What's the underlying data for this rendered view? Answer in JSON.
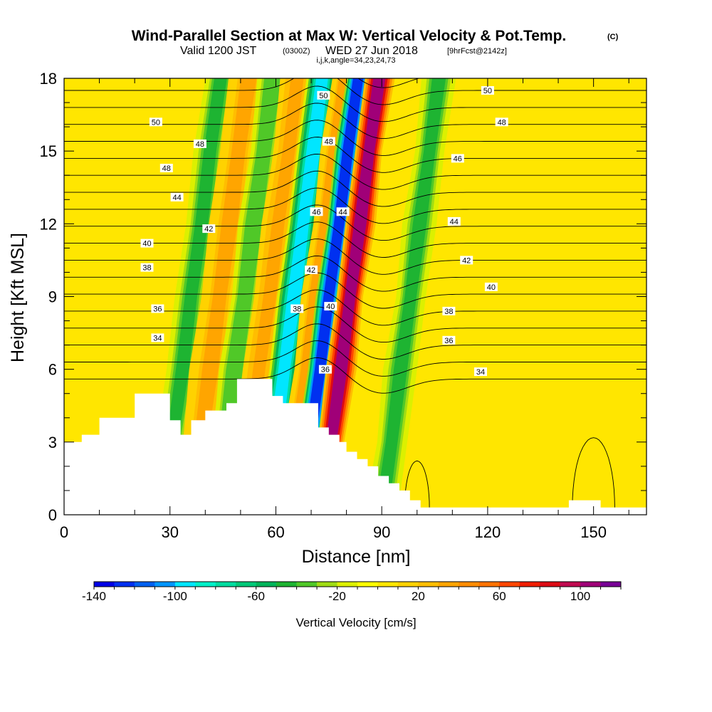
{
  "title": {
    "main": "Wind-Parallel Section at Max W: Vertical Velocity & Pot.Temp.",
    "mark": "(C)",
    "valid_prefix": "Valid 1200 JST",
    "valid_z": "(0300Z)",
    "valid_date": "WED 27 Jun 2018",
    "valid_fcst": "[9hrFcst@2142z]",
    "indices": "i,j,k,angle=34,23,24,73"
  },
  "chart_data": {
    "type": "heatmap",
    "xlabel": "Distance [nm]",
    "ylabel": "Height [Kft MSL]",
    "xlim": [
      0,
      165
    ],
    "ylim": [
      0,
      18
    ],
    "x_ticks": [
      0,
      30,
      60,
      90,
      120,
      150
    ],
    "y_ticks": [
      0,
      3,
      6,
      9,
      12,
      15,
      18
    ],
    "colorbar": {
      "label": "Vertical Velocity [cm/s]",
      "min": -140,
      "max": 120,
      "step": 10,
      "tick_values": [
        -140,
        -100,
        -60,
        -20,
        20,
        60,
        100
      ],
      "tick_labels": [
        "-140",
        "-100",
        "-60",
        "-20",
        "20",
        "60",
        "100"
      ],
      "colors": [
        "#0000e6",
        "#0030f0",
        "#0060f0",
        "#0096ff",
        "#00e6ff",
        "#00f0c8",
        "#00dca0",
        "#00c878",
        "#00b45a",
        "#1eb432",
        "#50c828",
        "#a0dc14",
        "#dcf000",
        "#ffff00",
        "#ffe600",
        "#ffd200",
        "#ffbe00",
        "#ffa500",
        "#ff8c00",
        "#ff7300",
        "#ff4600",
        "#f01e00",
        "#dc0a14",
        "#c00a50",
        "#a00078",
        "#780096"
      ]
    },
    "vertical_velocity_bands": [
      {
        "x_base": 28,
        "value": -50,
        "width": 4
      },
      {
        "x_base": 36,
        "value": 30,
        "width": 5
      },
      {
        "x_base": 43,
        "value": -40,
        "width": 3.5
      },
      {
        "x_base": 50,
        "value": 35,
        "width": 4
      },
      {
        "x_base": 57,
        "value": -95,
        "width": 4
      },
      {
        "x_base": 63,
        "value": 30,
        "width": 3
      },
      {
        "x_base": 67,
        "value": -130,
        "width": 3
      },
      {
        "x_base": 73,
        "value": 100,
        "width": 3.5
      },
      {
        "x_base": 90,
        "value": -50,
        "width": 4
      }
    ],
    "terrain": [
      [
        0,
        3
      ],
      [
        5,
        3
      ],
      [
        5,
        3.3
      ],
      [
        10,
        3.3
      ],
      [
        10,
        4
      ],
      [
        20,
        4
      ],
      [
        20,
        5
      ],
      [
        30,
        5
      ],
      [
        30,
        3.9
      ],
      [
        33,
        3.9
      ],
      [
        33,
        3.3
      ],
      [
        36,
        3.3
      ],
      [
        36,
        3.9
      ],
      [
        40,
        3.9
      ],
      [
        40,
        4.3
      ],
      [
        46,
        4.3
      ],
      [
        46,
        4.6
      ],
      [
        49,
        4.6
      ],
      [
        49,
        5.6
      ],
      [
        59,
        5.6
      ],
      [
        59,
        4.9
      ],
      [
        62,
        4.9
      ],
      [
        62,
        4.6
      ],
      [
        72,
        4.6
      ],
      [
        72,
        3.6
      ],
      [
        75,
        3.6
      ],
      [
        75,
        3.3
      ],
      [
        78,
        3.3
      ],
      [
        78,
        3
      ],
      [
        80,
        3
      ],
      [
        80,
        2.6
      ],
      [
        83,
        2.6
      ],
      [
        83,
        2.3
      ],
      [
        86,
        2.3
      ],
      [
        86,
        2
      ],
      [
        89,
        2
      ],
      [
        89,
        1.6
      ],
      [
        92,
        1.6
      ],
      [
        92,
        1.3
      ],
      [
        95,
        1.3
      ],
      [
        95,
        1
      ],
      [
        98,
        1
      ],
      [
        98,
        0.6
      ],
      [
        101,
        0.6
      ],
      [
        101,
        0.3
      ],
      [
        143,
        0.3
      ],
      [
        143,
        0.6
      ],
      [
        152,
        0.6
      ],
      [
        152,
        0.3
      ],
      [
        165,
        0.3
      ],
      [
        165,
        0
      ]
    ],
    "theta_contour_values": [
      33,
      34,
      35,
      36,
      37,
      38,
      39,
      40,
      41,
      42,
      43,
      44,
      45,
      46,
      47,
      48,
      49,
      50,
      51
    ],
    "contour_labels": [
      {
        "text": "50",
        "x": 26.0,
        "y": 16.2
      },
      {
        "text": "48",
        "x": 38.5,
        "y": 15.3
      },
      {
        "text": "48",
        "x": 29.0,
        "y": 14.3
      },
      {
        "text": "44",
        "x": 32.0,
        "y": 13.1
      },
      {
        "text": "42",
        "x": 41.0,
        "y": 11.8
      },
      {
        "text": "40",
        "x": 23.5,
        "y": 11.2
      },
      {
        "text": "38",
        "x": 23.5,
        "y": 10.2
      },
      {
        "text": "36",
        "x": 26.5,
        "y": 8.5
      },
      {
        "text": "34",
        "x": 26.5,
        "y": 7.3
      },
      {
        "text": "50",
        "x": 73.5,
        "y": 17.3
      },
      {
        "text": "48",
        "x": 75.0,
        "y": 15.4
      },
      {
        "text": "46",
        "x": 71.5,
        "y": 12.5
      },
      {
        "text": "44",
        "x": 79.0,
        "y": 12.5
      },
      {
        "text": "42",
        "x": 70.0,
        "y": 10.1
      },
      {
        "text": "40",
        "x": 75.5,
        "y": 8.6
      },
      {
        "text": "38",
        "x": 66.0,
        "y": 8.5
      },
      {
        "text": "36",
        "x": 74.0,
        "y": 6.0
      },
      {
        "text": "50",
        "x": 120.0,
        "y": 17.5
      },
      {
        "text": "48",
        "x": 124.0,
        "y": 16.2
      },
      {
        "text": "46",
        "x": 111.5,
        "y": 14.7
      },
      {
        "text": "44",
        "x": 110.5,
        "y": 12.1
      },
      {
        "text": "42",
        "x": 114.0,
        "y": 10.5
      },
      {
        "text": "40",
        "x": 121.0,
        "y": 9.4
      },
      {
        "text": "38",
        "x": 109.0,
        "y": 8.4
      },
      {
        "text": "36",
        "x": 109.0,
        "y": 7.2
      },
      {
        "text": "34",
        "x": 118.0,
        "y": 5.9
      }
    ]
  }
}
